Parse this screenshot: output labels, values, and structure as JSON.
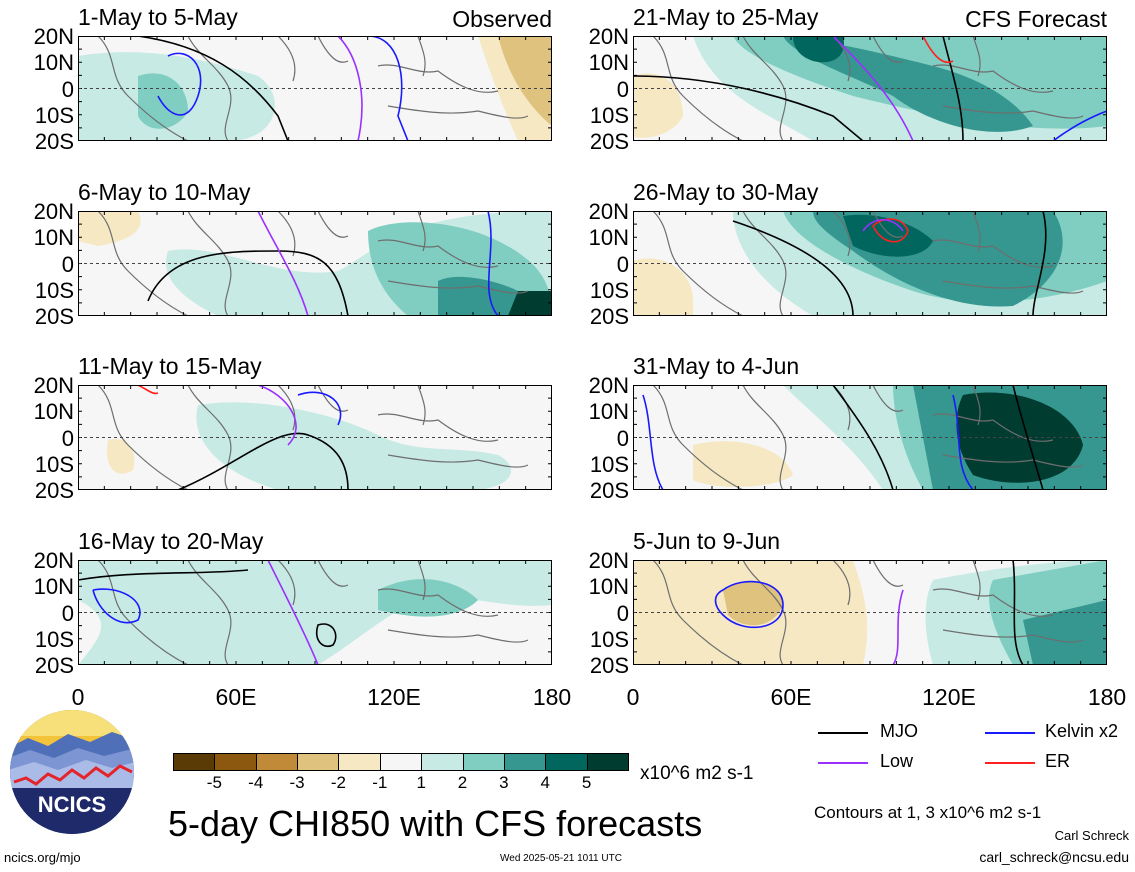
{
  "panels": [
    {
      "label": "1-May to 5-May",
      "tag": "Observed"
    },
    {
      "label": "6-May to 10-May",
      "tag": ""
    },
    {
      "label": "11-May to 15-May",
      "tag": ""
    },
    {
      "label": "16-May to 20-May",
      "tag": ""
    },
    {
      "label": "21-May to 25-May",
      "tag": "CFS Forecast"
    },
    {
      "label": "26-May to 30-May",
      "tag": ""
    },
    {
      "label": "31-May to 4-Jun",
      "tag": ""
    },
    {
      "label": "5-Jun to 9-Jun",
      "tag": ""
    }
  ],
  "lat_labels": [
    "20N",
    "10N",
    "0",
    "10S",
    "20S"
  ],
  "lon_labels": [
    "0",
    "60E",
    "120E",
    "180"
  ],
  "colorbar": {
    "colors": [
      "#5a3a05",
      "#8c5810",
      "#c08a38",
      "#dec27e",
      "#f5e8c3",
      "#f6f6f6",
      "#c7eae4",
      "#80cdc1",
      "#35978f",
      "#01665e",
      "#003c30"
    ],
    "ticks": [
      "-5",
      "-4",
      "-3",
      "-2",
      "-1",
      "1",
      "2",
      "3",
      "4",
      "5"
    ],
    "units": "x10^6 m2 s-1"
  },
  "legend": {
    "mjo": {
      "label": "MJO",
      "color": "#000000"
    },
    "kelvin": {
      "label": "Kelvin x2",
      "color": "#1a1aff"
    },
    "low": {
      "label": "Low",
      "color": "#9b30ff"
    },
    "er": {
      "label": "ER",
      "color": "#ff2020"
    }
  },
  "contours_note": "Contours at 1, 3 x10^6 m2 s-1",
  "title": "5-day CHI850 with CFS forecasts",
  "author": "Carl Schreck",
  "email": "carl_schreck@ncsu.edu",
  "url": "ncics.org/mjo",
  "timestamp": "Wed 2025-05-21 1011 UTC",
  "logo_text": "NCICS"
}
